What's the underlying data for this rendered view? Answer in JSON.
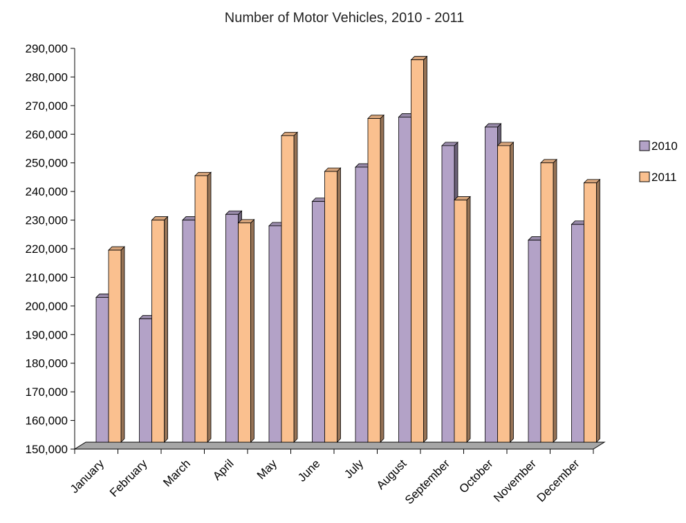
{
  "chart_data": {
    "type": "bar",
    "title": "Number of Motor Vehicles, 2010 - 2011",
    "xlabel": "",
    "ylabel": "",
    "ylim": [
      150000,
      290000
    ],
    "y_ticks": [
      "150,000",
      "160,000",
      "170,000",
      "180,000",
      "190,000",
      "200,000",
      "210,000",
      "220,000",
      "230,000",
      "240,000",
      "250,000",
      "260,000",
      "270,000",
      "280,000",
      "290,000"
    ],
    "categories": [
      "January",
      "February",
      "March",
      "April",
      "May",
      "June",
      "July",
      "August",
      "September",
      "October",
      "November",
      "December"
    ],
    "series": [
      {
        "name": "2010",
        "color": "#B3A2C7",
        "values": [
          203000,
          195500,
          230000,
          232000,
          228000,
          236500,
          248500,
          266000,
          256000,
          262500,
          223000,
          228500
        ]
      },
      {
        "name": "2011",
        "color": "#FAC08F",
        "values": [
          219500,
          230000,
          245500,
          229000,
          259500,
          247000,
          265500,
          286000,
          237000,
          256000,
          250000,
          243000
        ]
      }
    ],
    "grid": false,
    "legend_position": "right",
    "style": "3d-bar"
  }
}
